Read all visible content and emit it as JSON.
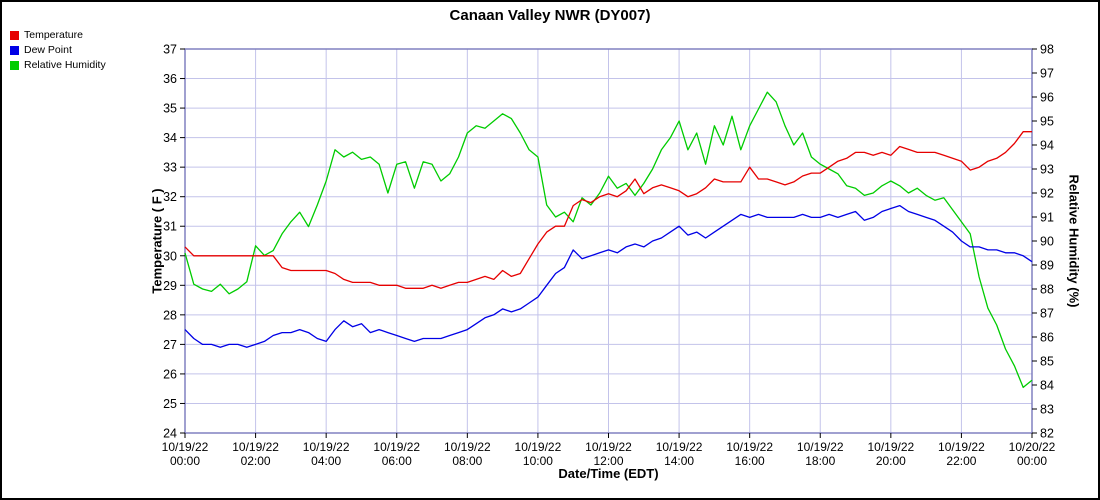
{
  "chart_data": {
    "type": "line",
    "title": "Canaan Valley NWR (DY007)",
    "xlabel": "Date/Time (EDT)",
    "ylabel_left": "Temperature ( F )",
    "ylabel_right": "Relative Humidity (%)",
    "grid": true,
    "grid_color": "#c3c3ea",
    "frame_color": "#8080c0",
    "legend_position": "top-left",
    "axes": {
      "left": {
        "min": 24,
        "max": 37,
        "step": 1
      },
      "right": {
        "min": 82,
        "max": 98,
        "step": 1
      }
    },
    "x_start_hour": 0,
    "x_end_hour": 24,
    "x_step_hours": 0.25,
    "x_ticks": [
      {
        "date": "10/19/22",
        "time": "00:00"
      },
      {
        "date": "10/19/22",
        "time": "02:00"
      },
      {
        "date": "10/19/22",
        "time": "04:00"
      },
      {
        "date": "10/19/22",
        "time": "06:00"
      },
      {
        "date": "10/19/22",
        "time": "08:00"
      },
      {
        "date": "10/19/22",
        "time": "10:00"
      },
      {
        "date": "10/19/22",
        "time": "12:00"
      },
      {
        "date": "10/19/22",
        "time": "14:00"
      },
      {
        "date": "10/19/22",
        "time": "16:00"
      },
      {
        "date": "10/19/22",
        "time": "18:00"
      },
      {
        "date": "10/19/22",
        "time": "20:00"
      },
      {
        "date": "10/19/22",
        "time": "22:00"
      },
      {
        "date": "10/20/22",
        "time": "00:00"
      }
    ],
    "series": [
      {
        "name": "Temperature",
        "color": "#e60000",
        "axis": "left",
        "values": [
          30.3,
          30.0,
          30.0,
          30.0,
          30.0,
          30.0,
          30.0,
          30.0,
          30.0,
          30.0,
          30.0,
          29.6,
          29.5,
          29.5,
          29.5,
          29.5,
          29.5,
          29.4,
          29.2,
          29.1,
          29.1,
          29.1,
          29.0,
          29.0,
          29.0,
          28.9,
          28.9,
          28.9,
          29.0,
          28.9,
          29.0,
          29.1,
          29.1,
          29.2,
          29.3,
          29.2,
          29.5,
          29.3,
          29.4,
          29.9,
          30.4,
          30.8,
          31.0,
          31.0,
          31.7,
          31.9,
          31.8,
          32.0,
          32.1,
          32.0,
          32.2,
          32.6,
          32.1,
          32.3,
          32.4,
          32.3,
          32.2,
          32.0,
          32.1,
          32.3,
          32.6,
          32.5,
          32.5,
          32.5,
          33.0,
          32.6,
          32.6,
          32.5,
          32.4,
          32.5,
          32.7,
          32.8,
          32.8,
          33.0,
          33.2,
          33.3,
          33.5,
          33.5,
          33.4,
          33.5,
          33.4,
          33.7,
          33.6,
          33.5,
          33.5,
          33.5,
          33.4,
          33.3,
          33.2,
          32.9,
          33.0,
          33.2,
          33.3,
          33.5,
          33.8,
          34.2,
          34.2
        ]
      },
      {
        "name": "Dew Point",
        "color": "#0000e6",
        "axis": "left",
        "values": [
          27.5,
          27.2,
          27.0,
          27.0,
          26.9,
          27.0,
          27.0,
          26.9,
          27.0,
          27.1,
          27.3,
          27.4,
          27.4,
          27.5,
          27.4,
          27.2,
          27.1,
          27.5,
          27.8,
          27.6,
          27.7,
          27.4,
          27.5,
          27.4,
          27.3,
          27.2,
          27.1,
          27.2,
          27.2,
          27.2,
          27.3,
          27.4,
          27.5,
          27.7,
          27.9,
          28.0,
          28.2,
          28.1,
          28.2,
          28.4,
          28.6,
          29.0,
          29.4,
          29.6,
          30.2,
          29.9,
          30.0,
          30.1,
          30.2,
          30.1,
          30.3,
          30.4,
          30.3,
          30.5,
          30.6,
          30.8,
          31.0,
          30.7,
          30.8,
          30.6,
          30.8,
          31.0,
          31.2,
          31.4,
          31.3,
          31.4,
          31.3,
          31.3,
          31.3,
          31.3,
          31.4,
          31.3,
          31.3,
          31.4,
          31.3,
          31.4,
          31.5,
          31.2,
          31.3,
          31.5,
          31.6,
          31.7,
          31.5,
          31.4,
          31.3,
          31.2,
          31.0,
          30.8,
          30.5,
          30.3,
          30.3,
          30.2,
          30.2,
          30.1,
          30.1,
          30.0,
          29.8
        ]
      },
      {
        "name": "Relative Humidity",
        "color": "#00cc00",
        "axis": "right",
        "values": [
          89.5,
          88.2,
          88.0,
          87.9,
          88.2,
          87.8,
          88.0,
          88.3,
          89.8,
          89.4,
          89.6,
          90.3,
          90.8,
          91.2,
          90.6,
          91.5,
          92.5,
          93.8,
          93.5,
          93.7,
          93.4,
          93.5,
          93.2,
          92.0,
          93.2,
          93.3,
          92.2,
          93.3,
          93.2,
          92.5,
          92.8,
          93.5,
          94.5,
          94.8,
          94.7,
          95.0,
          95.3,
          95.1,
          94.5,
          93.8,
          93.5,
          91.5,
          91.0,
          91.2,
          90.8,
          91.8,
          91.5,
          92.0,
          92.7,
          92.2,
          92.4,
          91.9,
          92.4,
          93.0,
          93.8,
          94.3,
          95.0,
          93.8,
          94.5,
          93.2,
          94.8,
          94.0,
          95.2,
          93.8,
          94.8,
          95.5,
          96.2,
          95.8,
          94.8,
          94.0,
          94.5,
          93.5,
          93.2,
          93.0,
          92.8,
          92.3,
          92.2,
          91.9,
          92.0,
          92.3,
          92.5,
          92.3,
          92.0,
          92.2,
          91.9,
          91.7,
          91.8,
          91.3,
          90.8,
          90.3,
          88.5,
          87.2,
          86.5,
          85.5,
          84.8,
          83.9,
          84.2
        ]
      }
    ]
  }
}
